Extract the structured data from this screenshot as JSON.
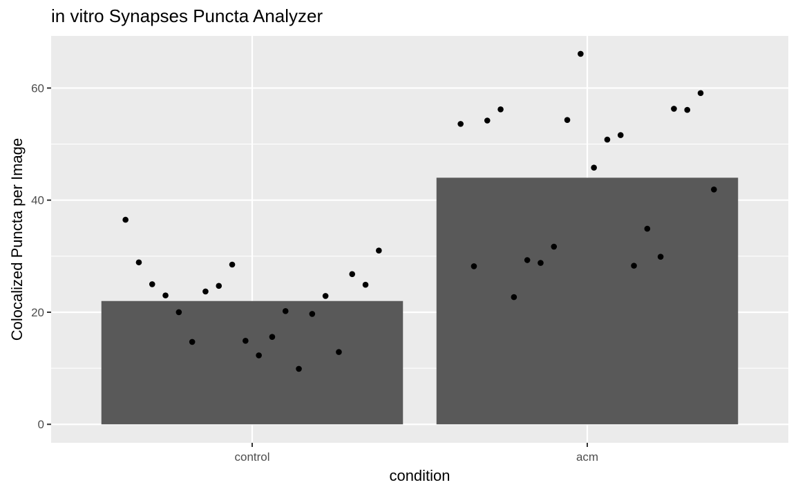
{
  "chart_data": {
    "type": "bar",
    "title": "in vitro Synapses Puncta Analyzer",
    "xlabel": "condition",
    "ylabel": "Colocalized Puncta per Image",
    "categories": [
      "control",
      "acm"
    ],
    "values": [
      22,
      44
    ],
    "ylim": [
      -3.3,
      69.3
    ],
    "yticks": [
      0,
      20,
      40,
      60
    ],
    "grid": true,
    "points": [
      {
        "category": "control",
        "y": [
          36.5,
          28.9,
          25.0,
          23.0,
          20.0,
          14.7,
          23.7,
          24.7,
          28.5,
          14.9,
          12.3,
          15.6,
          20.2,
          9.9,
          19.7,
          22.9,
          12.9,
          26.8,
          24.9,
          31.0
        ]
      },
      {
        "category": "acm",
        "y": [
          53.6,
          28.2,
          54.2,
          56.2,
          22.7,
          29.3,
          28.8,
          31.7,
          54.3,
          66.1,
          45.8,
          50.8,
          51.6,
          28.3,
          34.9,
          29.9,
          56.3,
          56.1,
          59.1,
          41.9
        ]
      }
    ],
    "colors": {
      "panel": "#ebebeb",
      "grid_major": "#ffffff",
      "bar": "#595959",
      "point": "#000000",
      "axis_text": "#4d4d4d"
    }
  }
}
